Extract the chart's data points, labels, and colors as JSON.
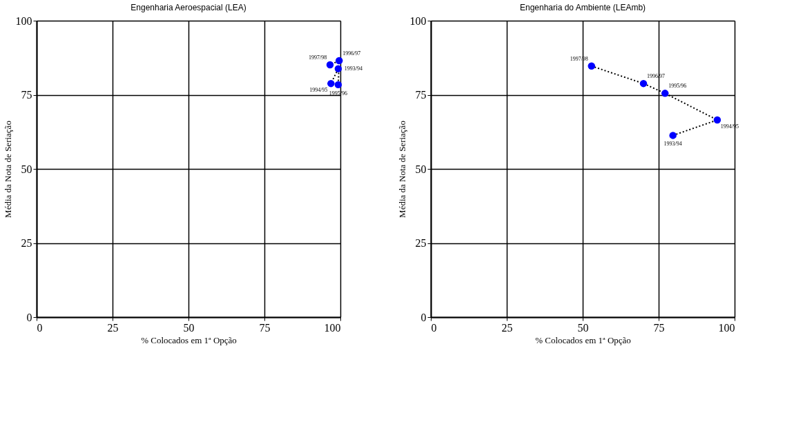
{
  "chart_data": [
    {
      "type": "line",
      "title": "Engenharia Aeroespacial (LEA)",
      "xlabel": "% Colocados em 1ª Opção",
      "ylabel": "Média da Nota de Seriação",
      "x": [
        99.3,
        96.9,
        99.3,
        99.6,
        96.6
      ],
      "values": [
        83.8,
        78.8,
        78.4,
        86.5,
        85.1
      ],
      "color": "#0000ff",
      "marker": "circle",
      "line_style": "dotted",
      "xlim": [
        0,
        100
      ],
      "ylim": [
        0,
        100
      ],
      "xticks": [
        0,
        25,
        50,
        75,
        100
      ],
      "yticks": [
        0,
        25,
        50,
        75,
        100
      ],
      "grid": true,
      "annotations": [
        {
          "text": "1993/94",
          "x": 99.3,
          "y": 83.8
        },
        {
          "text": "1994/95",
          "x": 96.9,
          "y": 78.8
        },
        {
          "text": "1995/96",
          "x": 99.3,
          "y": 78.4
        },
        {
          "text": "1996/97",
          "x": 99.6,
          "y": 86.5
        },
        {
          "text": "1997/98",
          "x": 96.6,
          "y": 85.1
        }
      ]
    },
    {
      "type": "line",
      "title": "Engenharia do Ambiente (LEAmb)",
      "xlabel": "% Colocados em 1ª Opção",
      "ylabel": "Média da Nota de Seriação",
      "x": [
        79.7,
        94.3,
        77.1,
        70.0,
        52.9
      ],
      "values": [
        61.3,
        66.5,
        75.5,
        78.8,
        84.7
      ],
      "color": "#0000ff",
      "marker": "circle",
      "line_style": "dotted",
      "xlim": [
        0,
        100
      ],
      "ylim": [
        0,
        100
      ],
      "xticks": [
        0,
        25,
        50,
        75,
        100
      ],
      "yticks": [
        0,
        25,
        50,
        75,
        100
      ],
      "grid": true,
      "annotations": [
        {
          "text": "1993/94",
          "x": 79.7,
          "y": 61.3
        },
        {
          "text": "1994/95",
          "x": 94.3,
          "y": 66.5
        },
        {
          "text": "1995/96",
          "x": 77.1,
          "y": 75.5
        },
        {
          "text": "1996/97",
          "x": 70.0,
          "y": 78.8
        },
        {
          "text": "1997/98",
          "x": 52.9,
          "y": 84.7
        }
      ]
    }
  ]
}
